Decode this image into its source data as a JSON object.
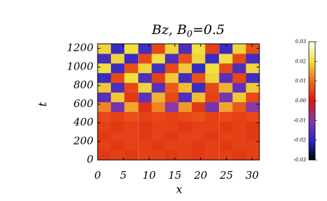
{
  "chart_data": {
    "type": "heatmap",
    "title": [
      "Bz,  B",
      "0",
      "=0.5"
    ],
    "x_label": "x",
    "y_label": "t",
    "x": [
      1.3,
      3.9,
      6.5,
      9.2,
      11.8,
      14.4,
      17.0,
      19.6,
      22.2,
      24.9,
      27.5,
      30.1
    ],
    "y": [
      52,
      156,
      260,
      365,
      469,
      573,
      677,
      781,
      885,
      990,
      1094,
      1198
    ],
    "z": [
      [
        0.004,
        0.005,
        0.004,
        0.005,
        0.005,
        0.004,
        0.005,
        0.004,
        0.005,
        0.005,
        0.004,
        0.005
      ],
      [
        0.005,
        0.004,
        0.005,
        0.005,
        0.004,
        0.005,
        0.005,
        0.004,
        0.005,
        0.004,
        0.005,
        0.005
      ],
      [
        0.004,
        0.005,
        0.005,
        0.004,
        0.005,
        0.004,
        0.005,
        0.005,
        0.004,
        0.005,
        0.005,
        0.004
      ],
      [
        0.005,
        0.004,
        0.005,
        0.004,
        0.005,
        0.005,
        0.004,
        0.005,
        0.005,
        0.004,
        0.005,
        0.004
      ],
      [
        0.006,
        0.005,
        0.007,
        0.005,
        0.006,
        0.005,
        0.006,
        0.007,
        0.005,
        0.006,
        0.005,
        0.006
      ],
      [
        0.012,
        -0.012,
        0.015,
        0.003,
        0.012,
        -0.01,
        0.014,
        0.004,
        -0.012,
        0.015,
        0.008,
        -0.01
      ],
      [
        -0.015,
        0.018,
        0.004,
        -0.014,
        0.016,
        0.006,
        -0.016,
        0.017,
        0.005,
        -0.012,
        0.018,
        0.006
      ],
      [
        0.018,
        -0.016,
        0.006,
        0.019,
        -0.015,
        0.008,
        0.017,
        -0.018,
        0.006,
        0.016,
        -0.014,
        0.018
      ],
      [
        -0.018,
        0.006,
        0.02,
        -0.016,
        0.005,
        0.018,
        -0.017,
        0.007,
        0.019,
        -0.015,
        0.006,
        -0.017
      ],
      [
        0.02,
        -0.018,
        0.007,
        0.019,
        -0.017,
        0.006,
        0.018,
        -0.019,
        0.02,
        0.006,
        -0.016,
        0.019
      ],
      [
        -0.017,
        0.019,
        -0.018,
        0.006,
        0.02,
        -0.016,
        0.007,
        0.019,
        -0.018,
        0.02,
        0.006,
        -0.017
      ],
      [
        0.019,
        -0.018,
        0.02,
        -0.017,
        0.006,
        0.019,
        -0.016,
        0.02,
        0.005,
        -0.018,
        0.019,
        0.007
      ]
    ],
    "xlim": [
      0,
      31.4
    ],
    "xticks": [
      0,
      5,
      10,
      15,
      20,
      25,
      30
    ],
    "ylim": [
      0,
      1250
    ],
    "yticks": [
      0,
      200,
      400,
      600,
      800,
      1000,
      1200
    ],
    "zlim": [
      -0.03,
      0.03
    ],
    "zticks": [
      0.03,
      0.02,
      0.01,
      {
        "value": 0,
        "label": "0.00"
      },
      -0.01,
      -0.02,
      -0.03
    ],
    "colorscale": [
      "#000000",
      "#2828c8",
      "#8838a8",
      "#d81810",
      "#f06a1c",
      "#f0e040",
      "#ffffff"
    ]
  }
}
